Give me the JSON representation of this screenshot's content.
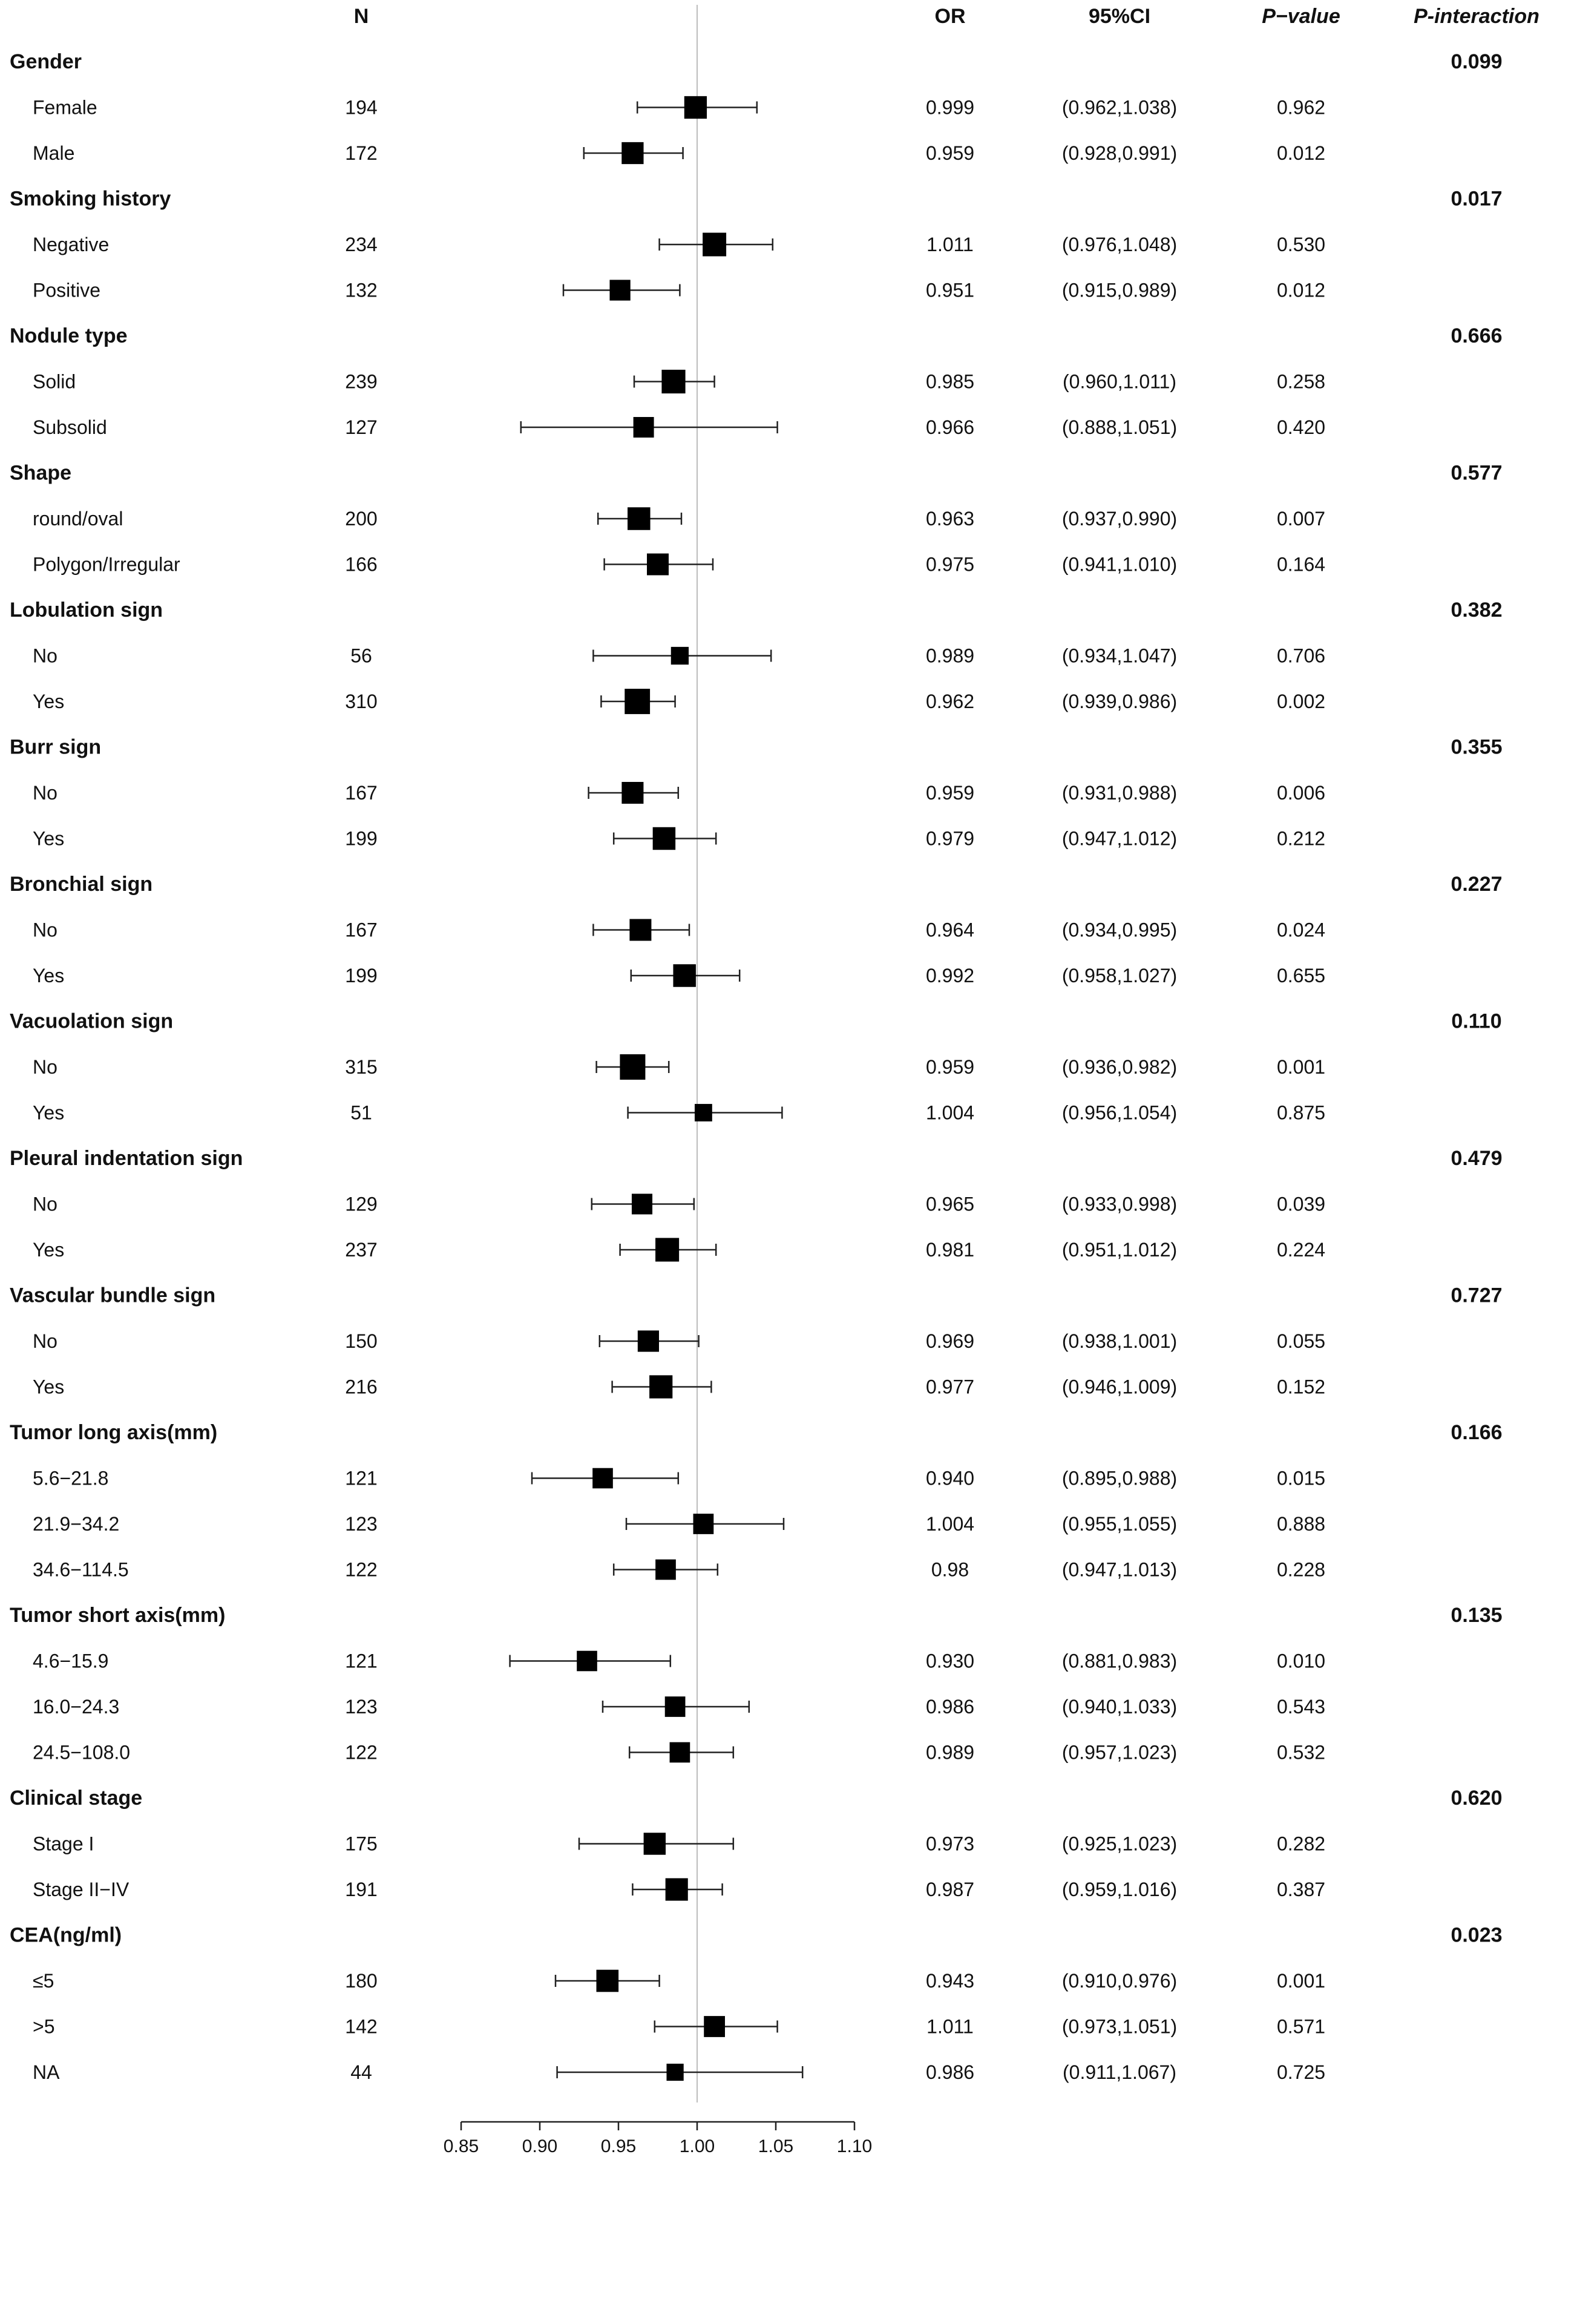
{
  "chart_data": {
    "type": "forest",
    "title": "",
    "columns": {
      "n": "N",
      "or": "OR",
      "ci": "95%CI",
      "p": "P−value",
      "pint": "P-interaction"
    },
    "xaxis": {
      "range": [
        0.85,
        1.1
      ],
      "ticks": [
        0.85,
        0.9,
        0.95,
        1.0,
        1.05,
        1.1
      ],
      "tick_labels": [
        "0.85",
        "0.90",
        "0.95",
        "1.00",
        "1.05",
        "1.10"
      ],
      "reference_line": 1.0
    },
    "groups": [
      {
        "label": "Gender",
        "p_interaction": "0.099",
        "rows": [
          {
            "label": "Female",
            "n": "194",
            "or_text": "0.999",
            "ci_text": "(0.962,1.038)",
            "p": "0.962",
            "or": 0.999,
            "lo": 0.962,
            "hi": 1.038
          },
          {
            "label": "Male",
            "n": "172",
            "or_text": "0.959",
            "ci_text": "(0.928,0.991)",
            "p": "0.012",
            "or": 0.959,
            "lo": 0.928,
            "hi": 0.991
          }
        ]
      },
      {
        "label": "Smoking history",
        "p_interaction": "0.017",
        "rows": [
          {
            "label": "Negative",
            "n": "234",
            "or_text": "1.011",
            "ci_text": "(0.976,1.048)",
            "p": "0.530",
            "or": 1.011,
            "lo": 0.976,
            "hi": 1.048
          },
          {
            "label": "Positive",
            "n": "132",
            "or_text": "0.951",
            "ci_text": "(0.915,0.989)",
            "p": "0.012",
            "or": 0.951,
            "lo": 0.915,
            "hi": 0.989
          }
        ]
      },
      {
        "label": "Nodule type",
        "p_interaction": "0.666",
        "rows": [
          {
            "label": "Solid",
            "n": "239",
            "or_text": "0.985",
            "ci_text": "(0.960,1.011)",
            "p": "0.258",
            "or": 0.985,
            "lo": 0.96,
            "hi": 1.011
          },
          {
            "label": "Subsolid",
            "n": "127",
            "or_text": "0.966",
            "ci_text": "(0.888,1.051)",
            "p": "0.420",
            "or": 0.966,
            "lo": 0.888,
            "hi": 1.051
          }
        ]
      },
      {
        "label": "Shape",
        "p_interaction": "0.577",
        "rows": [
          {
            "label": "round/oval",
            "n": "200",
            "or_text": "0.963",
            "ci_text": "(0.937,0.990)",
            "p": "0.007",
            "or": 0.963,
            "lo": 0.937,
            "hi": 0.99
          },
          {
            "label": "Polygon/Irregular",
            "n": "166",
            "or_text": "0.975",
            "ci_text": "(0.941,1.010)",
            "p": "0.164",
            "or": 0.975,
            "lo": 0.941,
            "hi": 1.01
          }
        ]
      },
      {
        "label": "Lobulation sign",
        "p_interaction": "0.382",
        "rows": [
          {
            "label": "No",
            "n": "56",
            "or_text": "0.989",
            "ci_text": "(0.934,1.047)",
            "p": "0.706",
            "or": 0.989,
            "lo": 0.934,
            "hi": 1.047
          },
          {
            "label": "Yes",
            "n": "310",
            "or_text": "0.962",
            "ci_text": "(0.939,0.986)",
            "p": "0.002",
            "or": 0.962,
            "lo": 0.939,
            "hi": 0.986
          }
        ]
      },
      {
        "label": "Burr sign",
        "p_interaction": "0.355",
        "rows": [
          {
            "label": "No",
            "n": "167",
            "or_text": "0.959",
            "ci_text": "(0.931,0.988)",
            "p": "0.006",
            "or": 0.959,
            "lo": 0.931,
            "hi": 0.988
          },
          {
            "label": "Yes",
            "n": "199",
            "or_text": "0.979",
            "ci_text": "(0.947,1.012)",
            "p": "0.212",
            "or": 0.979,
            "lo": 0.947,
            "hi": 1.012
          }
        ]
      },
      {
        "label": "Bronchial sign",
        "p_interaction": "0.227",
        "rows": [
          {
            "label": "No",
            "n": "167",
            "or_text": "0.964",
            "ci_text": "(0.934,0.995)",
            "p": "0.024",
            "or": 0.964,
            "lo": 0.934,
            "hi": 0.995
          },
          {
            "label": "Yes",
            "n": "199",
            "or_text": "0.992",
            "ci_text": "(0.958,1.027)",
            "p": "0.655",
            "or": 0.992,
            "lo": 0.958,
            "hi": 1.027
          }
        ]
      },
      {
        "label": "Vacuolation sign",
        "p_interaction": "0.110",
        "rows": [
          {
            "label": "No",
            "n": "315",
            "or_text": "0.959",
            "ci_text": "(0.936,0.982)",
            "p": "0.001",
            "or": 0.959,
            "lo": 0.936,
            "hi": 0.982
          },
          {
            "label": "Yes",
            "n": "51",
            "or_text": "1.004",
            "ci_text": "(0.956,1.054)",
            "p": "0.875",
            "or": 1.004,
            "lo": 0.956,
            "hi": 1.054
          }
        ]
      },
      {
        "label": "Pleural indentation sign",
        "p_interaction": "0.479",
        "rows": [
          {
            "label": "No",
            "n": "129",
            "or_text": "0.965",
            "ci_text": "(0.933,0.998)",
            "p": "0.039",
            "or": 0.965,
            "lo": 0.933,
            "hi": 0.998
          },
          {
            "label": "Yes",
            "n": "237",
            "or_text": "0.981",
            "ci_text": "(0.951,1.012)",
            "p": "0.224",
            "or": 0.981,
            "lo": 0.951,
            "hi": 1.012
          }
        ]
      },
      {
        "label": "Vascular bundle sign",
        "p_interaction": "0.727",
        "rows": [
          {
            "label": "No",
            "n": "150",
            "or_text": "0.969",
            "ci_text": "(0.938,1.001)",
            "p": "0.055",
            "or": 0.969,
            "lo": 0.938,
            "hi": 1.001
          },
          {
            "label": "Yes",
            "n": "216",
            "or_text": "0.977",
            "ci_text": "(0.946,1.009)",
            "p": "0.152",
            "or": 0.977,
            "lo": 0.946,
            "hi": 1.009
          }
        ]
      },
      {
        "label": "Tumor long axis(mm)",
        "p_interaction": "0.166",
        "rows": [
          {
            "label": "5.6−21.8",
            "n": "121",
            "or_text": "0.940",
            "ci_text": "(0.895,0.988)",
            "p": "0.015",
            "or": 0.94,
            "lo": 0.895,
            "hi": 0.988
          },
          {
            "label": "21.9−34.2",
            "n": "123",
            "or_text": "1.004",
            "ci_text": "(0.955,1.055)",
            "p": "0.888",
            "or": 1.004,
            "lo": 0.955,
            "hi": 1.055
          },
          {
            "label": "34.6−114.5",
            "n": "122",
            "or_text": "0.98",
            "ci_text": "(0.947,1.013)",
            "p": "0.228",
            "or": 0.98,
            "lo": 0.947,
            "hi": 1.013
          }
        ]
      },
      {
        "label": "Tumor short axis(mm)",
        "p_interaction": "0.135",
        "rows": [
          {
            "label": "4.6−15.9",
            "n": "121",
            "or_text": "0.930",
            "ci_text": "(0.881,0.983)",
            "p": "0.010",
            "or": 0.93,
            "lo": 0.881,
            "hi": 0.983
          },
          {
            "label": "16.0−24.3",
            "n": "123",
            "or_text": "0.986",
            "ci_text": "(0.940,1.033)",
            "p": "0.543",
            "or": 0.986,
            "lo": 0.94,
            "hi": 1.033
          },
          {
            "label": "24.5−108.0",
            "n": "122",
            "or_text": "0.989",
            "ci_text": "(0.957,1.023)",
            "p": "0.532",
            "or": 0.989,
            "lo": 0.957,
            "hi": 1.023
          }
        ]
      },
      {
        "label": "Clinical stage",
        "p_interaction": "0.620",
        "rows": [
          {
            "label": "Stage I",
            "n": "175",
            "or_text": "0.973",
            "ci_text": "(0.925,1.023)",
            "p": "0.282",
            "or": 0.973,
            "lo": 0.925,
            "hi": 1.023
          },
          {
            "label": "Stage II−IV",
            "n": "191",
            "or_text": "0.987",
            "ci_text": "(0.959,1.016)",
            "p": "0.387",
            "or": 0.987,
            "lo": 0.959,
            "hi": 1.016
          }
        ]
      },
      {
        "label": "CEA(ng/ml)",
        "p_interaction": "0.023",
        "rows": [
          {
            "label": "≤5",
            "n": "180",
            "or_text": "0.943",
            "ci_text": "(0.910,0.976)",
            "p": "0.001",
            "or": 0.943,
            "lo": 0.91,
            "hi": 0.976
          },
          {
            "label": ">5",
            "n": "142",
            "or_text": "1.011",
            "ci_text": "(0.973,1.051)",
            "p": "0.571",
            "or": 1.011,
            "lo": 0.973,
            "hi": 1.051
          },
          {
            "label": "NA",
            "n": "44",
            "or_text": "0.986",
            "ci_text": "(0.911,1.067)",
            "p": "0.725",
            "or": 0.986,
            "lo": 0.911,
            "hi": 1.067
          }
        ]
      }
    ]
  }
}
